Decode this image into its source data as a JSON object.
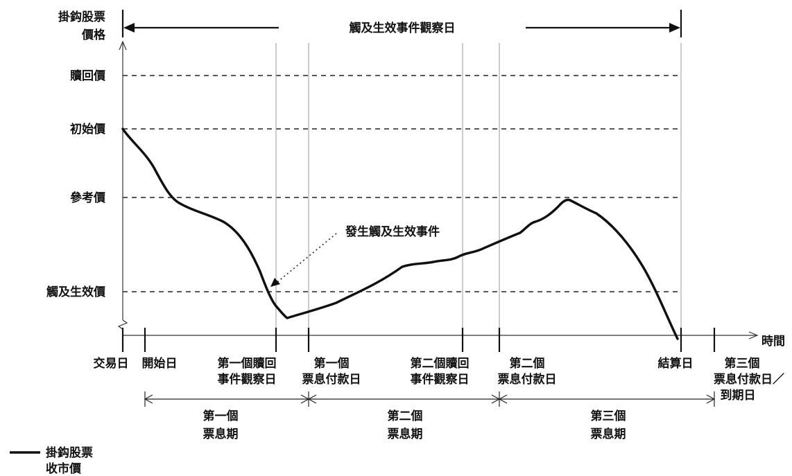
{
  "y_axis": {
    "title_line1": "掛鈎股票",
    "title_line2": "價格",
    "levels": {
      "redemption": "贖回價",
      "initial": "初始價",
      "reference": "參考價",
      "trigger": "觸及生效價"
    }
  },
  "x_axis": {
    "title": "時間",
    "dates": {
      "trade": "交易日",
      "start": "開始日",
      "obs1_line1": "第一個贖回",
      "obs1_line2": "事件觀察日",
      "pay1_line1": "第一個",
      "pay1_line2": "票息付款日",
      "obs2_line1": "第二個贖回",
      "obs2_line2": "事件觀察日",
      "pay2_line1": "第二個",
      "pay2_line2": "票息付款日",
      "settle": "結算日",
      "pay3_line1": "第三個",
      "pay3_line2": "票息付款日／",
      "pay3_line3": "到期日"
    }
  },
  "banner": "觸及生效事件觀察日",
  "annotation": "發生觸及生效事件",
  "periods": {
    "p1_line1": "第一個",
    "p1_line2": "票息期",
    "p2_line1": "第二個",
    "p2_line2": "票息期",
    "p3_line1": "第三個",
    "p3_line2": "票息期"
  },
  "legend": {
    "line1": "掛鈎股票",
    "line2": "收市價"
  }
}
